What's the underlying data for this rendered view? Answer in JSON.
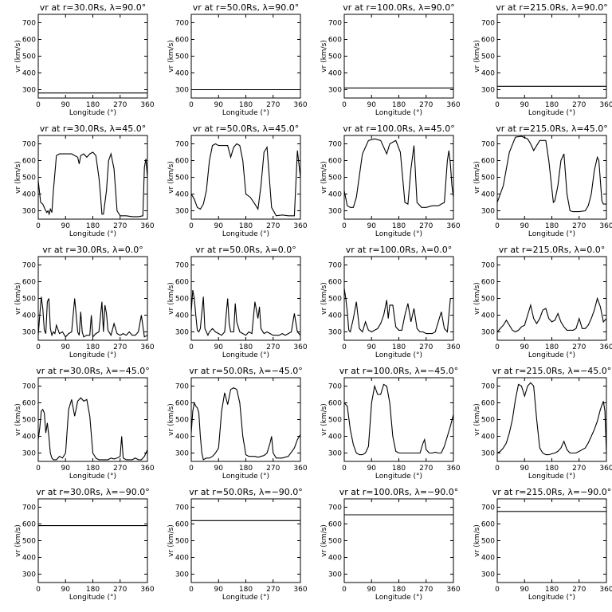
{
  "chart_data": {
    "type": "line",
    "layout": "grid 5x4",
    "xlabel": "Longitude (°)",
    "ylabel": "vr (km/s)",
    "xlim": [
      0,
      360
    ],
    "ylim": [
      250,
      750
    ],
    "xticks": [
      "0",
      "90",
      "180",
      "270",
      "360"
    ],
    "yticks": [
      "300",
      "400",
      "500",
      "600",
      "700"
    ],
    "panels": [
      {
        "title": "vr at r=30.0Rs, λ=90.0°",
        "x": [
          0,
          360
        ],
        "y": [
          280,
          280
        ]
      },
      {
        "title": "vr at r=50.0Rs, λ=90.0°",
        "x": [
          0,
          360
        ],
        "y": [
          300,
          300
        ]
      },
      {
        "title": "vr at r=100.0Rs, λ=90.0°",
        "x": [
          0,
          360
        ],
        "y": [
          310,
          310
        ]
      },
      {
        "title": "vr at r=215.0Rs, λ=90.0°",
        "x": [
          0,
          360
        ],
        "y": [
          320,
          320
        ]
      },
      {
        "title": "vr at r=30.0Rs, λ=45.0°",
        "x": [
          0,
          8,
          15,
          22,
          28,
          32,
          36,
          40,
          45,
          50,
          60,
          70,
          90,
          110,
          130,
          135,
          140,
          150,
          160,
          170,
          180,
          190,
          200,
          205,
          210,
          215,
          225,
          232,
          240,
          250,
          260,
          270,
          290,
          310,
          330,
          345,
          350,
          355,
          360
        ],
        "y": [
          480,
          350,
          340,
          310,
          290,
          300,
          280,
          310,
          290,
          420,
          630,
          640,
          640,
          640,
          620,
          580,
          630,
          640,
          620,
          640,
          650,
          630,
          500,
          400,
          280,
          280,
          420,
          600,
          640,
          550,
          300,
          270,
          270,
          265,
          265,
          270,
          560,
          610,
          500
        ]
      },
      {
        "title": "vr at r=50.0Rs, λ=45.0°",
        "x": [
          0,
          10,
          20,
          30,
          40,
          50,
          60,
          70,
          80,
          90,
          120,
          130,
          140,
          150,
          160,
          170,
          180,
          195,
          210,
          220,
          230,
          240,
          250,
          265,
          280,
          300,
          320,
          340,
          350,
          360
        ],
        "y": [
          400,
          370,
          320,
          310,
          340,
          420,
          600,
          690,
          700,
          690,
          690,
          620,
          680,
          700,
          690,
          600,
          400,
          380,
          340,
          310,
          450,
          650,
          680,
          320,
          270,
          275,
          270,
          270,
          660,
          500
        ]
      },
      {
        "title": "vr at r=100.0Rs, λ=45.0°",
        "x": [
          0,
          10,
          20,
          30,
          40,
          60,
          80,
          100,
          120,
          130,
          140,
          150,
          170,
          185,
          200,
          210,
          220,
          230,
          240,
          255,
          270,
          290,
          310,
          330,
          340,
          345,
          350,
          355,
          360
        ],
        "y": [
          420,
          330,
          320,
          320,
          380,
          640,
          720,
          730,
          720,
          680,
          640,
          700,
          720,
          650,
          350,
          340,
          550,
          690,
          350,
          320,
          320,
          330,
          330,
          350,
          600,
          660,
          580,
          450,
          380
        ]
      },
      {
        "title": "vr at r=215.0Rs, λ=45.0°",
        "x": [
          0,
          10,
          20,
          40,
          60,
          80,
          100,
          110,
          120,
          140,
          160,
          170,
          185,
          190,
          200,
          210,
          220,
          230,
          240,
          250,
          270,
          290,
          300,
          310,
          320,
          330,
          335,
          340,
          345,
          350,
          360
        ],
        "y": [
          350,
          400,
          450,
          650,
          740,
          745,
          730,
          700,
          660,
          720,
          720,
          600,
          350,
          360,
          450,
          600,
          640,
          400,
          300,
          295,
          295,
          300,
          330,
          400,
          540,
          620,
          600,
          480,
          360,
          340,
          340
        ]
      },
      {
        "title": "vr at r=30.0Rs, λ=0.0°",
        "x": [
          0,
          5,
          10,
          15,
          20,
          25,
          30,
          35,
          40,
          45,
          50,
          55,
          60,
          70,
          80,
          90,
          100,
          110,
          120,
          130,
          135,
          140,
          145,
          150,
          160,
          170,
          175,
          180,
          190,
          200,
          210,
          215,
          220,
          225,
          230,
          240,
          250,
          260,
          270,
          280,
          290,
          300,
          310,
          320,
          330,
          340,
          350,
          360
        ],
        "y": [
          280,
          400,
          510,
          440,
          310,
          290,
          480,
          500,
          320,
          280,
          300,
          290,
          340,
          290,
          300,
          270,
          290,
          300,
          500,
          300,
          280,
          420,
          300,
          270,
          280,
          280,
          400,
          270,
          290,
          300,
          480,
          300,
          460,
          410,
          310,
          280,
          350,
          290,
          280,
          290,
          280,
          300,
          280,
          280,
          300,
          400,
          270,
          280
        ]
      },
      {
        "title": "vr at r=50.0Rs, λ=0.0°",
        "x": [
          0,
          5,
          10,
          15,
          20,
          25,
          30,
          40,
          45,
          50,
          55,
          60,
          70,
          80,
          90,
          100,
          110,
          120,
          125,
          130,
          140,
          145,
          150,
          160,
          170,
          180,
          190,
          200,
          210,
          220,
          225,
          230,
          240,
          250,
          260,
          270,
          280,
          290,
          300,
          310,
          320,
          330,
          340,
          350,
          360
        ],
        "y": [
          420,
          550,
          500,
          400,
          310,
          300,
          320,
          510,
          320,
          300,
          280,
          300,
          320,
          300,
          290,
          280,
          300,
          500,
          350,
          300,
          300,
          470,
          360,
          300,
          290,
          280,
          300,
          290,
          480,
          380,
          450,
          320,
          290,
          300,
          290,
          280,
          280,
          280,
          290,
          280,
          290,
          300,
          410,
          300,
          280
        ]
      },
      {
        "title": "vr at r=100.0Rs, λ=0.0°",
        "x": [
          0,
          5,
          10,
          15,
          20,
          30,
          40,
          50,
          60,
          70,
          80,
          90,
          100,
          110,
          120,
          130,
          140,
          145,
          150,
          160,
          170,
          180,
          190,
          200,
          210,
          220,
          230,
          240,
          250,
          260,
          270,
          280,
          290,
          300,
          310,
          320,
          330,
          340,
          350,
          360
        ],
        "y": [
          560,
          500,
          420,
          310,
          300,
          380,
          480,
          320,
          300,
          360,
          310,
          300,
          310,
          320,
          350,
          400,
          490,
          380,
          460,
          460,
          330,
          310,
          310,
          400,
          470,
          360,
          440,
          320,
          300,
          300,
          290,
          290,
          290,
          300,
          360,
          420,
          320,
          300,
          500,
          500
        ]
      },
      {
        "title": "vr at r=215.0Rs, λ=0.0°",
        "x": [
          0,
          10,
          20,
          30,
          40,
          50,
          60,
          70,
          80,
          90,
          100,
          110,
          120,
          130,
          140,
          150,
          160,
          170,
          180,
          190,
          200,
          210,
          220,
          230,
          240,
          250,
          260,
          270,
          280,
          290,
          300,
          310,
          320,
          330,
          340,
          350,
          360
        ],
        "y": [
          300,
          320,
          340,
          370,
          340,
          310,
          300,
          310,
          330,
          340,
          400,
          460,
          380,
          350,
          380,
          430,
          440,
          380,
          360,
          370,
          410,
          360,
          330,
          310,
          310,
          310,
          320,
          380,
          320,
          320,
          340,
          380,
          430,
          500,
          450,
          360,
          380
        ]
      },
      {
        "title": "vr at r=30.0Rs, λ=−45.0°",
        "x": [
          0,
          5,
          10,
          15,
          20,
          25,
          30,
          35,
          40,
          45,
          50,
          60,
          70,
          80,
          90,
          100,
          110,
          120,
          130,
          140,
          150,
          160,
          170,
          180,
          190,
          200,
          210,
          220,
          230,
          240,
          250,
          260,
          270,
          275,
          280,
          290,
          300,
          310,
          320,
          330,
          340,
          350,
          355,
          360
        ],
        "y": [
          380,
          450,
          550,
          560,
          540,
          420,
          480,
          400,
          300,
          270,
          260,
          260,
          280,
          270,
          300,
          560,
          620,
          520,
          610,
          630,
          610,
          620,
          520,
          300,
          270,
          260,
          260,
          260,
          260,
          270,
          265,
          270,
          280,
          400,
          270,
          260,
          260,
          260,
          270,
          260,
          260,
          280,
          300,
          320
        ]
      },
      {
        "title": "vr at r=50.0Rs, λ=−45.0°",
        "x": [
          0,
          5,
          10,
          15,
          20,
          25,
          30,
          35,
          40,
          50,
          60,
          70,
          80,
          90,
          100,
          110,
          120,
          130,
          140,
          150,
          160,
          170,
          180,
          190,
          200,
          210,
          220,
          230,
          240,
          250,
          260,
          265,
          270,
          280,
          300,
          320,
          340,
          350,
          360
        ],
        "y": [
          420,
          550,
          600,
          580,
          570,
          540,
          400,
          300,
          260,
          270,
          270,
          280,
          300,
          330,
          550,
          660,
          590,
          680,
          690,
          680,
          600,
          400,
          290,
          280,
          280,
          280,
          275,
          280,
          285,
          300,
          360,
          400,
          300,
          270,
          270,
          280,
          330,
          380,
          410
        ]
      },
      {
        "title": "vr at r=100.0Rs, λ=−45.0°",
        "x": [
          0,
          10,
          20,
          30,
          40,
          50,
          60,
          70,
          80,
          90,
          100,
          110,
          120,
          130,
          140,
          150,
          160,
          170,
          180,
          190,
          200,
          210,
          220,
          230,
          240,
          250,
          260,
          265,
          270,
          280,
          290,
          300,
          310,
          320,
          330,
          340,
          350,
          360
        ],
        "y": [
          600,
          580,
          440,
          350,
          300,
          290,
          290,
          300,
          340,
          600,
          700,
          650,
          650,
          710,
          700,
          600,
          400,
          310,
          300,
          300,
          300,
          300,
          300,
          300,
          300,
          300,
          360,
          380,
          320,
          300,
          300,
          305,
          300,
          300,
          340,
          400,
          460,
          530
        ]
      },
      {
        "title": "vr at r=215.0Rs, λ=−45.0°",
        "x": [
          0,
          10,
          20,
          30,
          40,
          50,
          60,
          70,
          80,
          90,
          100,
          110,
          120,
          130,
          140,
          150,
          160,
          170,
          180,
          190,
          200,
          210,
          220,
          230,
          240,
          250,
          260,
          270,
          280,
          290,
          300,
          310,
          320,
          330,
          340,
          350,
          355,
          360
        ],
        "y": [
          300,
          310,
          330,
          360,
          420,
          500,
          620,
          710,
          700,
          640,
          700,
          720,
          700,
          500,
          330,
          300,
          290,
          290,
          295,
          300,
          310,
          330,
          370,
          320,
          300,
          300,
          300,
          310,
          320,
          330,
          360,
          400,
          440,
          490,
          560,
          610,
          550,
          300
        ]
      },
      {
        "title": "vr at r=30.0Rs, λ=−90.0°",
        "x": [
          0,
          360
        ],
        "y": [
          590,
          590
        ]
      },
      {
        "title": "vr at r=50.0Rs, λ=−90.0°",
        "x": [
          0,
          360
        ],
        "y": [
          620,
          620
        ]
      },
      {
        "title": "vr at r=100.0Rs, λ=−90.0°",
        "x": [
          0,
          360
        ],
        "y": [
          655,
          655
        ]
      },
      {
        "title": "vr at r=215.0Rs, λ=−90.0°",
        "x": [
          0,
          360
        ],
        "y": [
          675,
          675
        ]
      }
    ]
  }
}
